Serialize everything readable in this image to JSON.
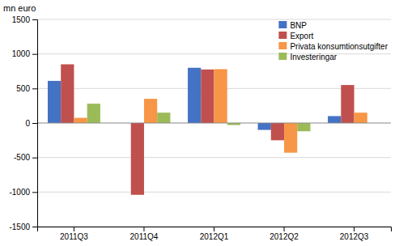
{
  "chart_data": {
    "type": "bar",
    "ylabel": "mn euro",
    "categories": [
      "2011Q3",
      "2011Q4",
      "2012Q1",
      "2012Q2",
      "2012Q3"
    ],
    "series": [
      {
        "name": "BNP",
        "color": "#4472C4",
        "values": [
          610,
          0,
          800,
          -100,
          100
        ]
      },
      {
        "name": "Export",
        "color": "#C0504D",
        "values": [
          850,
          -1040,
          775,
          -250,
          550
        ]
      },
      {
        "name": "Privata konsumtionsutgifter",
        "color": "#F79646",
        "values": [
          75,
          350,
          780,
          -430,
          150
        ]
      },
      {
        "name": "Investeringar",
        "color": "#9BBB59",
        "values": [
          280,
          150,
          -30,
          -120,
          0
        ]
      }
    ],
    "ylim": [
      -1500,
      1500
    ],
    "yticks": [
      -1500,
      -1000,
      -500,
      0,
      500,
      1000,
      1500
    ],
    "grid": true,
    "legend": "upper right"
  }
}
